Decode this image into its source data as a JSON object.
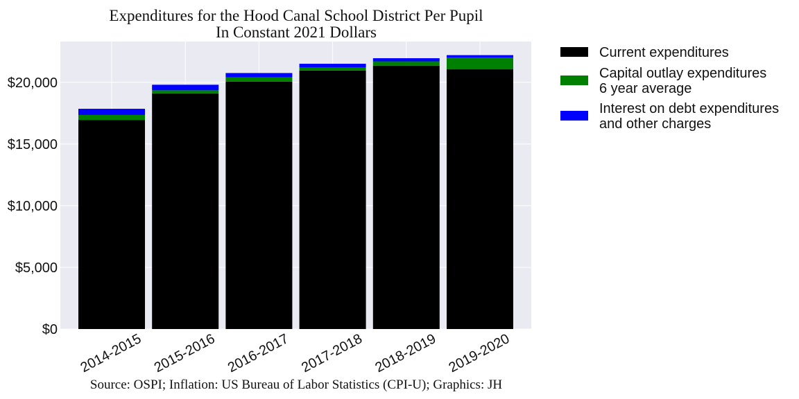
{
  "chart_data": {
    "type": "bar",
    "stacked": true,
    "title_lines": [
      "Expenditures for the Hood Canal School District Per Pupil",
      "In Constant 2021 Dollars"
    ],
    "source": "Source: OSPI; Inflation: US Bureau of Labor Statistics (CPI-U); Graphics: JH",
    "categories": [
      "2014-2015",
      "2015-2016",
      "2016-2017",
      "2017-2018",
      "2018-2019",
      "2019-2020"
    ],
    "series": [
      {
        "name_lines": [
          "Current expenditures"
        ],
        "color": "#000000",
        "values": [
          16950,
          19100,
          20050,
          20950,
          21350,
          21050
        ]
      },
      {
        "name_lines": [
          "Capital outlay expenditures",
          "6 year average"
        ],
        "color": "#008000",
        "values": [
          400,
          250,
          350,
          250,
          350,
          950
        ]
      },
      {
        "name_lines": [
          "Interest on debt expenditures",
          "and other charges"
        ],
        "color": "#0000ff",
        "values": [
          500,
          450,
          350,
          300,
          250,
          200
        ]
      }
    ],
    "ylim": [
      0,
      23300
    ],
    "yticks": [
      0,
      5000,
      10000,
      15000,
      20000
    ],
    "ytick_labels": [
      "$0",
      "$5,000",
      "$10,000",
      "$15,000",
      "$20,000"
    ],
    "xlabel": "",
    "ylabel": "",
    "grid": true,
    "plot_background": "#eaeaf2",
    "legend_position": "outside-right"
  }
}
